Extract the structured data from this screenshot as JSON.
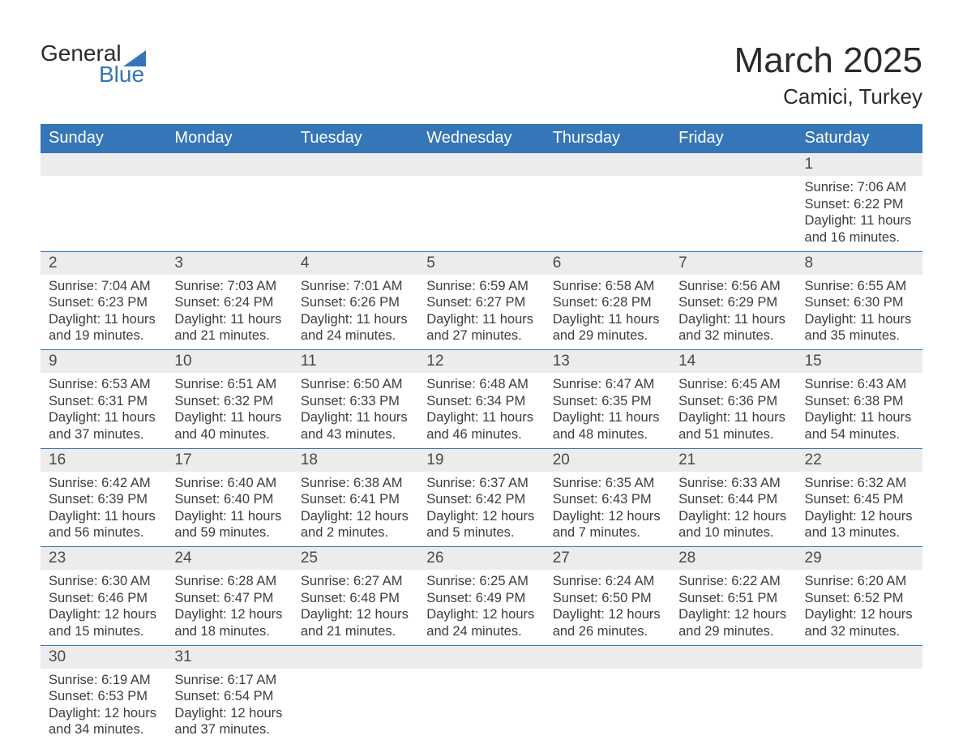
{
  "logo": {
    "text_general": "General",
    "text_blue": "Blue",
    "shape_color": "#3576b8"
  },
  "header": {
    "month_title": "March 2025",
    "location": "Camici, Turkey"
  },
  "colors": {
    "header_bg": "#3576b8",
    "header_text": "#ffffff",
    "daynum_bg": "#ececec",
    "border": "#3576b8",
    "text": "#3d3d3d"
  },
  "typography": {
    "title_fontsize": 44,
    "location_fontsize": 26,
    "weekday_fontsize": 20,
    "daynum_fontsize": 19,
    "body_fontsize": 16.5
  },
  "calendar": {
    "type": "table",
    "weekdays": [
      "Sunday",
      "Monday",
      "Tuesday",
      "Wednesday",
      "Thursday",
      "Friday",
      "Saturday"
    ],
    "weeks": [
      [
        {
          "day": "",
          "sunrise": "",
          "sunset": "",
          "daylight": ""
        },
        {
          "day": "",
          "sunrise": "",
          "sunset": "",
          "daylight": ""
        },
        {
          "day": "",
          "sunrise": "",
          "sunset": "",
          "daylight": ""
        },
        {
          "day": "",
          "sunrise": "",
          "sunset": "",
          "daylight": ""
        },
        {
          "day": "",
          "sunrise": "",
          "sunset": "",
          "daylight": ""
        },
        {
          "day": "",
          "sunrise": "",
          "sunset": "",
          "daylight": ""
        },
        {
          "day": "1",
          "sunrise": "Sunrise: 7:06 AM",
          "sunset": "Sunset: 6:22 PM",
          "daylight": "Daylight: 11 hours and 16 minutes."
        }
      ],
      [
        {
          "day": "2",
          "sunrise": "Sunrise: 7:04 AM",
          "sunset": "Sunset: 6:23 PM",
          "daylight": "Daylight: 11 hours and 19 minutes."
        },
        {
          "day": "3",
          "sunrise": "Sunrise: 7:03 AM",
          "sunset": "Sunset: 6:24 PM",
          "daylight": "Daylight: 11 hours and 21 minutes."
        },
        {
          "day": "4",
          "sunrise": "Sunrise: 7:01 AM",
          "sunset": "Sunset: 6:26 PM",
          "daylight": "Daylight: 11 hours and 24 minutes."
        },
        {
          "day": "5",
          "sunrise": "Sunrise: 6:59 AM",
          "sunset": "Sunset: 6:27 PM",
          "daylight": "Daylight: 11 hours and 27 minutes."
        },
        {
          "day": "6",
          "sunrise": "Sunrise: 6:58 AM",
          "sunset": "Sunset: 6:28 PM",
          "daylight": "Daylight: 11 hours and 29 minutes."
        },
        {
          "day": "7",
          "sunrise": "Sunrise: 6:56 AM",
          "sunset": "Sunset: 6:29 PM",
          "daylight": "Daylight: 11 hours and 32 minutes."
        },
        {
          "day": "8",
          "sunrise": "Sunrise: 6:55 AM",
          "sunset": "Sunset: 6:30 PM",
          "daylight": "Daylight: 11 hours and 35 minutes."
        }
      ],
      [
        {
          "day": "9",
          "sunrise": "Sunrise: 6:53 AM",
          "sunset": "Sunset: 6:31 PM",
          "daylight": "Daylight: 11 hours and 37 minutes."
        },
        {
          "day": "10",
          "sunrise": "Sunrise: 6:51 AM",
          "sunset": "Sunset: 6:32 PM",
          "daylight": "Daylight: 11 hours and 40 minutes."
        },
        {
          "day": "11",
          "sunrise": "Sunrise: 6:50 AM",
          "sunset": "Sunset: 6:33 PM",
          "daylight": "Daylight: 11 hours and 43 minutes."
        },
        {
          "day": "12",
          "sunrise": "Sunrise: 6:48 AM",
          "sunset": "Sunset: 6:34 PM",
          "daylight": "Daylight: 11 hours and 46 minutes."
        },
        {
          "day": "13",
          "sunrise": "Sunrise: 6:47 AM",
          "sunset": "Sunset: 6:35 PM",
          "daylight": "Daylight: 11 hours and 48 minutes."
        },
        {
          "day": "14",
          "sunrise": "Sunrise: 6:45 AM",
          "sunset": "Sunset: 6:36 PM",
          "daylight": "Daylight: 11 hours and 51 minutes."
        },
        {
          "day": "15",
          "sunrise": "Sunrise: 6:43 AM",
          "sunset": "Sunset: 6:38 PM",
          "daylight": "Daylight: 11 hours and 54 minutes."
        }
      ],
      [
        {
          "day": "16",
          "sunrise": "Sunrise: 6:42 AM",
          "sunset": "Sunset: 6:39 PM",
          "daylight": "Daylight: 11 hours and 56 minutes."
        },
        {
          "day": "17",
          "sunrise": "Sunrise: 6:40 AM",
          "sunset": "Sunset: 6:40 PM",
          "daylight": "Daylight: 11 hours and 59 minutes."
        },
        {
          "day": "18",
          "sunrise": "Sunrise: 6:38 AM",
          "sunset": "Sunset: 6:41 PM",
          "daylight": "Daylight: 12 hours and 2 minutes."
        },
        {
          "day": "19",
          "sunrise": "Sunrise: 6:37 AM",
          "sunset": "Sunset: 6:42 PM",
          "daylight": "Daylight: 12 hours and 5 minutes."
        },
        {
          "day": "20",
          "sunrise": "Sunrise: 6:35 AM",
          "sunset": "Sunset: 6:43 PM",
          "daylight": "Daylight: 12 hours and 7 minutes."
        },
        {
          "day": "21",
          "sunrise": "Sunrise: 6:33 AM",
          "sunset": "Sunset: 6:44 PM",
          "daylight": "Daylight: 12 hours and 10 minutes."
        },
        {
          "day": "22",
          "sunrise": "Sunrise: 6:32 AM",
          "sunset": "Sunset: 6:45 PM",
          "daylight": "Daylight: 12 hours and 13 minutes."
        }
      ],
      [
        {
          "day": "23",
          "sunrise": "Sunrise: 6:30 AM",
          "sunset": "Sunset: 6:46 PM",
          "daylight": "Daylight: 12 hours and 15 minutes."
        },
        {
          "day": "24",
          "sunrise": "Sunrise: 6:28 AM",
          "sunset": "Sunset: 6:47 PM",
          "daylight": "Daylight: 12 hours and 18 minutes."
        },
        {
          "day": "25",
          "sunrise": "Sunrise: 6:27 AM",
          "sunset": "Sunset: 6:48 PM",
          "daylight": "Daylight: 12 hours and 21 minutes."
        },
        {
          "day": "26",
          "sunrise": "Sunrise: 6:25 AM",
          "sunset": "Sunset: 6:49 PM",
          "daylight": "Daylight: 12 hours and 24 minutes."
        },
        {
          "day": "27",
          "sunrise": "Sunrise: 6:24 AM",
          "sunset": "Sunset: 6:50 PM",
          "daylight": "Daylight: 12 hours and 26 minutes."
        },
        {
          "day": "28",
          "sunrise": "Sunrise: 6:22 AM",
          "sunset": "Sunset: 6:51 PM",
          "daylight": "Daylight: 12 hours and 29 minutes."
        },
        {
          "day": "29",
          "sunrise": "Sunrise: 6:20 AM",
          "sunset": "Sunset: 6:52 PM",
          "daylight": "Daylight: 12 hours and 32 minutes."
        }
      ],
      [
        {
          "day": "30",
          "sunrise": "Sunrise: 6:19 AM",
          "sunset": "Sunset: 6:53 PM",
          "daylight": "Daylight: 12 hours and 34 minutes."
        },
        {
          "day": "31",
          "sunrise": "Sunrise: 6:17 AM",
          "sunset": "Sunset: 6:54 PM",
          "daylight": "Daylight: 12 hours and 37 minutes."
        },
        {
          "day": "",
          "sunrise": "",
          "sunset": "",
          "daylight": ""
        },
        {
          "day": "",
          "sunrise": "",
          "sunset": "",
          "daylight": ""
        },
        {
          "day": "",
          "sunrise": "",
          "sunset": "",
          "daylight": ""
        },
        {
          "day": "",
          "sunrise": "",
          "sunset": "",
          "daylight": ""
        },
        {
          "day": "",
          "sunrise": "",
          "sunset": "",
          "daylight": ""
        }
      ]
    ]
  }
}
